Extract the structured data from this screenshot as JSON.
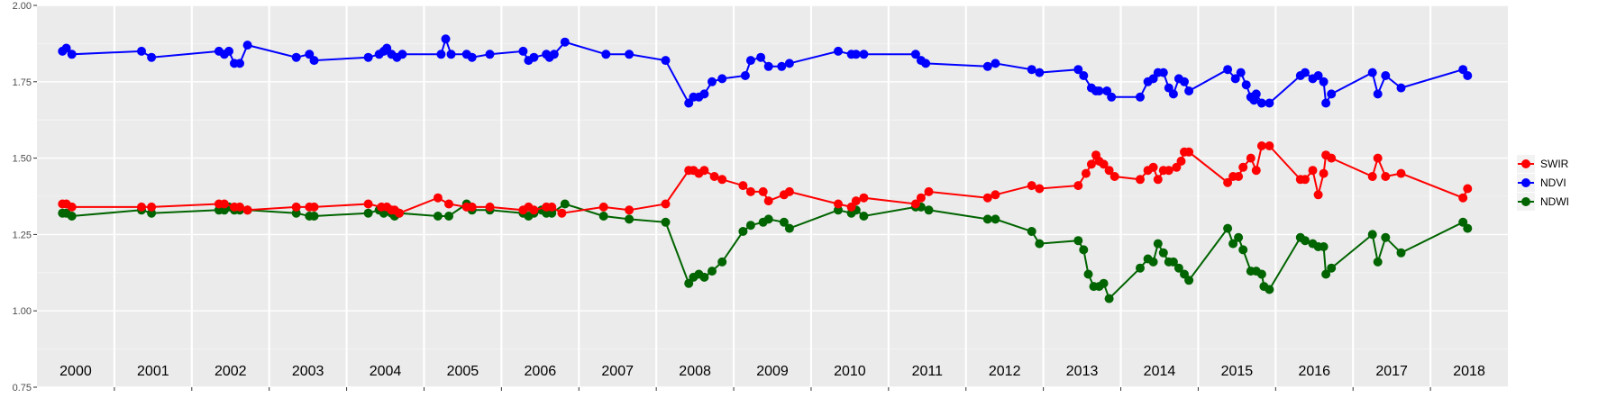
{
  "chart_data": {
    "type": "line",
    "title": "",
    "xlabel": "",
    "ylabel": "",
    "ylim": [
      0.75,
      2.0
    ],
    "xlim": [
      2000.0,
      2019.0
    ],
    "y_ticks": [
      "0.75",
      "1.00",
      "1.25",
      "1.50",
      "1.75",
      "2.00"
    ],
    "year_labels": [
      "2000",
      "2001",
      "2002",
      "2003",
      "2004",
      "2005",
      "2006",
      "2007",
      "2008",
      "2009",
      "2010",
      "2011",
      "2012",
      "2013",
      "2014",
      "2015",
      "2016",
      "2017",
      "2018"
    ],
    "grid": true,
    "legend_position": "right",
    "series": [
      {
        "name": "SWIR",
        "color": "#ff0000",
        "points": [
          [
            2000.33,
            1.35
          ],
          [
            2000.38,
            1.35
          ],
          [
            2000.45,
            1.34
          ],
          [
            2001.35,
            1.34
          ],
          [
            2001.48,
            1.34
          ],
          [
            2002.35,
            1.35
          ],
          [
            2002.42,
            1.35
          ],
          [
            2002.55,
            1.34
          ],
          [
            2002.62,
            1.34
          ],
          [
            2002.72,
            1.33
          ],
          [
            2003.35,
            1.34
          ],
          [
            2003.52,
            1.34
          ],
          [
            2003.58,
            1.34
          ],
          [
            2004.28,
            1.35
          ],
          [
            2004.45,
            1.34
          ],
          [
            2004.52,
            1.34
          ],
          [
            2004.58,
            1.33
          ],
          [
            2004.62,
            1.33
          ],
          [
            2004.68,
            1.32
          ],
          [
            2005.18,
            1.37
          ],
          [
            2005.32,
            1.35
          ],
          [
            2005.55,
            1.34
          ],
          [
            2005.62,
            1.34
          ],
          [
            2005.85,
            1.34
          ],
          [
            2006.28,
            1.33
          ],
          [
            2006.35,
            1.34
          ],
          [
            2006.42,
            1.33
          ],
          [
            2006.58,
            1.34
          ],
          [
            2006.65,
            1.34
          ],
          [
            2006.78,
            1.32
          ],
          [
            2007.32,
            1.34
          ],
          [
            2007.65,
            1.33
          ],
          [
            2008.12,
            1.35
          ],
          [
            2008.42,
            1.46
          ],
          [
            2008.48,
            1.46
          ],
          [
            2008.55,
            1.45
          ],
          [
            2008.62,
            1.46
          ],
          [
            2008.75,
            1.44
          ],
          [
            2008.85,
            1.43
          ],
          [
            2009.12,
            1.41
          ],
          [
            2009.22,
            1.39
          ],
          [
            2009.38,
            1.39
          ],
          [
            2009.45,
            1.36
          ],
          [
            2009.65,
            1.38
          ],
          [
            2009.72,
            1.39
          ],
          [
            2010.35,
            1.35
          ],
          [
            2010.52,
            1.34
          ],
          [
            2010.58,
            1.36
          ],
          [
            2010.68,
            1.37
          ],
          [
            2011.35,
            1.35
          ],
          [
            2011.42,
            1.37
          ],
          [
            2011.52,
            1.39
          ],
          [
            2012.28,
            1.37
          ],
          [
            2012.38,
            1.38
          ],
          [
            2012.85,
            1.41
          ],
          [
            2012.95,
            1.4
          ],
          [
            2013.45,
            1.41
          ],
          [
            2013.55,
            1.45
          ],
          [
            2013.62,
            1.48
          ],
          [
            2013.68,
            1.51
          ],
          [
            2013.72,
            1.49
          ],
          [
            2013.78,
            1.48
          ],
          [
            2013.85,
            1.46
          ],
          [
            2013.92,
            1.44
          ],
          [
            2014.25,
            1.43
          ],
          [
            2014.35,
            1.46
          ],
          [
            2014.42,
            1.47
          ],
          [
            2014.48,
            1.43
          ],
          [
            2014.55,
            1.46
          ],
          [
            2014.62,
            1.46
          ],
          [
            2014.72,
            1.47
          ],
          [
            2014.78,
            1.49
          ],
          [
            2014.82,
            1.52
          ],
          [
            2014.88,
            1.52
          ],
          [
            2015.38,
            1.42
          ],
          [
            2015.45,
            1.44
          ],
          [
            2015.52,
            1.44
          ],
          [
            2015.58,
            1.47
          ],
          [
            2015.68,
            1.5
          ],
          [
            2015.75,
            1.46
          ],
          [
            2015.82,
            1.54
          ],
          [
            2015.92,
            1.54
          ],
          [
            2016.32,
            1.43
          ],
          [
            2016.38,
            1.43
          ],
          [
            2016.48,
            1.46
          ],
          [
            2016.55,
            1.38
          ],
          [
            2016.62,
            1.45
          ],
          [
            2016.65,
            1.51
          ],
          [
            2016.72,
            1.5
          ],
          [
            2017.25,
            1.44
          ],
          [
            2017.32,
            1.5
          ],
          [
            2017.42,
            1.44
          ],
          [
            2017.62,
            1.45
          ],
          [
            2018.42,
            1.37
          ],
          [
            2018.48,
            1.4
          ]
        ]
      },
      {
        "name": "NDVI",
        "color": "#0000ff",
        "points": [
          [
            2000.33,
            1.85
          ],
          [
            2000.38,
            1.86
          ],
          [
            2000.45,
            1.84
          ],
          [
            2001.35,
            1.85
          ],
          [
            2001.48,
            1.83
          ],
          [
            2002.35,
            1.85
          ],
          [
            2002.42,
            1.84
          ],
          [
            2002.48,
            1.85
          ],
          [
            2002.55,
            1.81
          ],
          [
            2002.62,
            1.81
          ],
          [
            2002.72,
            1.87
          ],
          [
            2003.35,
            1.83
          ],
          [
            2003.52,
            1.84
          ],
          [
            2003.58,
            1.82
          ],
          [
            2004.28,
            1.83
          ],
          [
            2004.42,
            1.84
          ],
          [
            2004.48,
            1.85
          ],
          [
            2004.52,
            1.86
          ],
          [
            2004.58,
            1.84
          ],
          [
            2004.65,
            1.83
          ],
          [
            2004.72,
            1.84
          ],
          [
            2005.22,
            1.84
          ],
          [
            2005.28,
            1.89
          ],
          [
            2005.35,
            1.84
          ],
          [
            2005.55,
            1.84
          ],
          [
            2005.62,
            1.83
          ],
          [
            2005.85,
            1.84
          ],
          [
            2006.28,
            1.85
          ],
          [
            2006.35,
            1.82
          ],
          [
            2006.42,
            1.83
          ],
          [
            2006.58,
            1.84
          ],
          [
            2006.62,
            1.83
          ],
          [
            2006.68,
            1.84
          ],
          [
            2006.82,
            1.88
          ],
          [
            2007.35,
            1.84
          ],
          [
            2007.65,
            1.84
          ],
          [
            2008.12,
            1.82
          ],
          [
            2008.42,
            1.68
          ],
          [
            2008.48,
            1.7
          ],
          [
            2008.55,
            1.7
          ],
          [
            2008.62,
            1.71
          ],
          [
            2008.72,
            1.75
          ],
          [
            2008.85,
            1.76
          ],
          [
            2009.15,
            1.77
          ],
          [
            2009.22,
            1.82
          ],
          [
            2009.35,
            1.83
          ],
          [
            2009.45,
            1.8
          ],
          [
            2009.62,
            1.8
          ],
          [
            2009.72,
            1.81
          ],
          [
            2010.35,
            1.85
          ],
          [
            2010.52,
            1.84
          ],
          [
            2010.58,
            1.84
          ],
          [
            2010.68,
            1.84
          ],
          [
            2011.35,
            1.84
          ],
          [
            2011.42,
            1.82
          ],
          [
            2011.48,
            1.81
          ],
          [
            2012.28,
            1.8
          ],
          [
            2012.38,
            1.81
          ],
          [
            2012.85,
            1.79
          ],
          [
            2012.95,
            1.78
          ],
          [
            2013.45,
            1.79
          ],
          [
            2013.52,
            1.77
          ],
          [
            2013.62,
            1.73
          ],
          [
            2013.68,
            1.72
          ],
          [
            2013.72,
            1.72
          ],
          [
            2013.82,
            1.72
          ],
          [
            2013.88,
            1.7
          ],
          [
            2014.25,
            1.7
          ],
          [
            2014.35,
            1.75
          ],
          [
            2014.42,
            1.76
          ],
          [
            2014.48,
            1.78
          ],
          [
            2014.55,
            1.78
          ],
          [
            2014.62,
            1.73
          ],
          [
            2014.68,
            1.71
          ],
          [
            2014.75,
            1.76
          ],
          [
            2014.82,
            1.75
          ],
          [
            2014.88,
            1.72
          ],
          [
            2015.38,
            1.79
          ],
          [
            2015.48,
            1.76
          ],
          [
            2015.55,
            1.78
          ],
          [
            2015.62,
            1.74
          ],
          [
            2015.68,
            1.7
          ],
          [
            2015.72,
            1.69
          ],
          [
            2015.75,
            1.71
          ],
          [
            2015.82,
            1.68
          ],
          [
            2015.92,
            1.68
          ],
          [
            2016.32,
            1.77
          ],
          [
            2016.38,
            1.78
          ],
          [
            2016.48,
            1.76
          ],
          [
            2016.55,
            1.77
          ],
          [
            2016.62,
            1.75
          ],
          [
            2016.65,
            1.68
          ],
          [
            2016.72,
            1.71
          ],
          [
            2017.25,
            1.78
          ],
          [
            2017.32,
            1.71
          ],
          [
            2017.42,
            1.77
          ],
          [
            2017.62,
            1.73
          ],
          [
            2018.42,
            1.79
          ],
          [
            2018.48,
            1.77
          ]
        ]
      },
      {
        "name": "NDWI",
        "color": "#006400",
        "points": [
          [
            2000.33,
            1.32
          ],
          [
            2000.38,
            1.32
          ],
          [
            2000.45,
            1.31
          ],
          [
            2001.35,
            1.33
          ],
          [
            2001.48,
            1.32
          ],
          [
            2002.35,
            1.33
          ],
          [
            2002.42,
            1.33
          ],
          [
            2002.48,
            1.34
          ],
          [
            2002.55,
            1.33
          ],
          [
            2002.62,
            1.33
          ],
          [
            2002.72,
            1.33
          ],
          [
            2003.35,
            1.32
          ],
          [
            2003.52,
            1.31
          ],
          [
            2003.58,
            1.31
          ],
          [
            2004.28,
            1.32
          ],
          [
            2004.42,
            1.33
          ],
          [
            2004.48,
            1.32
          ],
          [
            2004.52,
            1.33
          ],
          [
            2004.58,
            1.32
          ],
          [
            2004.62,
            1.31
          ],
          [
            2004.68,
            1.32
          ],
          [
            2005.18,
            1.31
          ],
          [
            2005.32,
            1.31
          ],
          [
            2005.55,
            1.35
          ],
          [
            2005.62,
            1.33
          ],
          [
            2005.85,
            1.33
          ],
          [
            2006.28,
            1.32
          ],
          [
            2006.35,
            1.31
          ],
          [
            2006.42,
            1.32
          ],
          [
            2006.52,
            1.33
          ],
          [
            2006.58,
            1.32
          ],
          [
            2006.65,
            1.32
          ],
          [
            2006.82,
            1.35
          ],
          [
            2007.32,
            1.31
          ],
          [
            2007.65,
            1.3
          ],
          [
            2008.12,
            1.29
          ],
          [
            2008.42,
            1.09
          ],
          [
            2008.48,
            1.11
          ],
          [
            2008.55,
            1.12
          ],
          [
            2008.62,
            1.11
          ],
          [
            2008.72,
            1.13
          ],
          [
            2008.85,
            1.16
          ],
          [
            2009.12,
            1.26
          ],
          [
            2009.22,
            1.28
          ],
          [
            2009.38,
            1.29
          ],
          [
            2009.45,
            1.3
          ],
          [
            2009.65,
            1.29
          ],
          [
            2009.72,
            1.27
          ],
          [
            2010.35,
            1.33
          ],
          [
            2010.52,
            1.32
          ],
          [
            2010.58,
            1.33
          ],
          [
            2010.68,
            1.31
          ],
          [
            2011.35,
            1.34
          ],
          [
            2011.42,
            1.34
          ],
          [
            2011.52,
            1.33
          ],
          [
            2012.28,
            1.3
          ],
          [
            2012.38,
            1.3
          ],
          [
            2012.85,
            1.26
          ],
          [
            2012.95,
            1.22
          ],
          [
            2013.45,
            1.23
          ],
          [
            2013.52,
            1.2
          ],
          [
            2013.58,
            1.12
          ],
          [
            2013.65,
            1.08
          ],
          [
            2013.72,
            1.08
          ],
          [
            2013.78,
            1.09
          ],
          [
            2013.85,
            1.04
          ],
          [
            2014.25,
            1.14
          ],
          [
            2014.35,
            1.17
          ],
          [
            2014.42,
            1.16
          ],
          [
            2014.48,
            1.22
          ],
          [
            2014.55,
            1.19
          ],
          [
            2014.62,
            1.16
          ],
          [
            2014.68,
            1.16
          ],
          [
            2014.75,
            1.14
          ],
          [
            2014.82,
            1.12
          ],
          [
            2014.88,
            1.1
          ],
          [
            2015.38,
            1.27
          ],
          [
            2015.45,
            1.22
          ],
          [
            2015.52,
            1.24
          ],
          [
            2015.58,
            1.2
          ],
          [
            2015.68,
            1.13
          ],
          [
            2015.75,
            1.13
          ],
          [
            2015.82,
            1.12
          ],
          [
            2015.85,
            1.08
          ],
          [
            2015.92,
            1.07
          ],
          [
            2016.32,
            1.24
          ],
          [
            2016.38,
            1.23
          ],
          [
            2016.48,
            1.22
          ],
          [
            2016.55,
            1.21
          ],
          [
            2016.62,
            1.21
          ],
          [
            2016.65,
            1.12
          ],
          [
            2016.72,
            1.14
          ],
          [
            2017.25,
            1.25
          ],
          [
            2017.32,
            1.16
          ],
          [
            2017.42,
            1.24
          ],
          [
            2017.62,
            1.19
          ],
          [
            2018.42,
            1.29
          ],
          [
            2018.48,
            1.27
          ]
        ]
      }
    ]
  }
}
